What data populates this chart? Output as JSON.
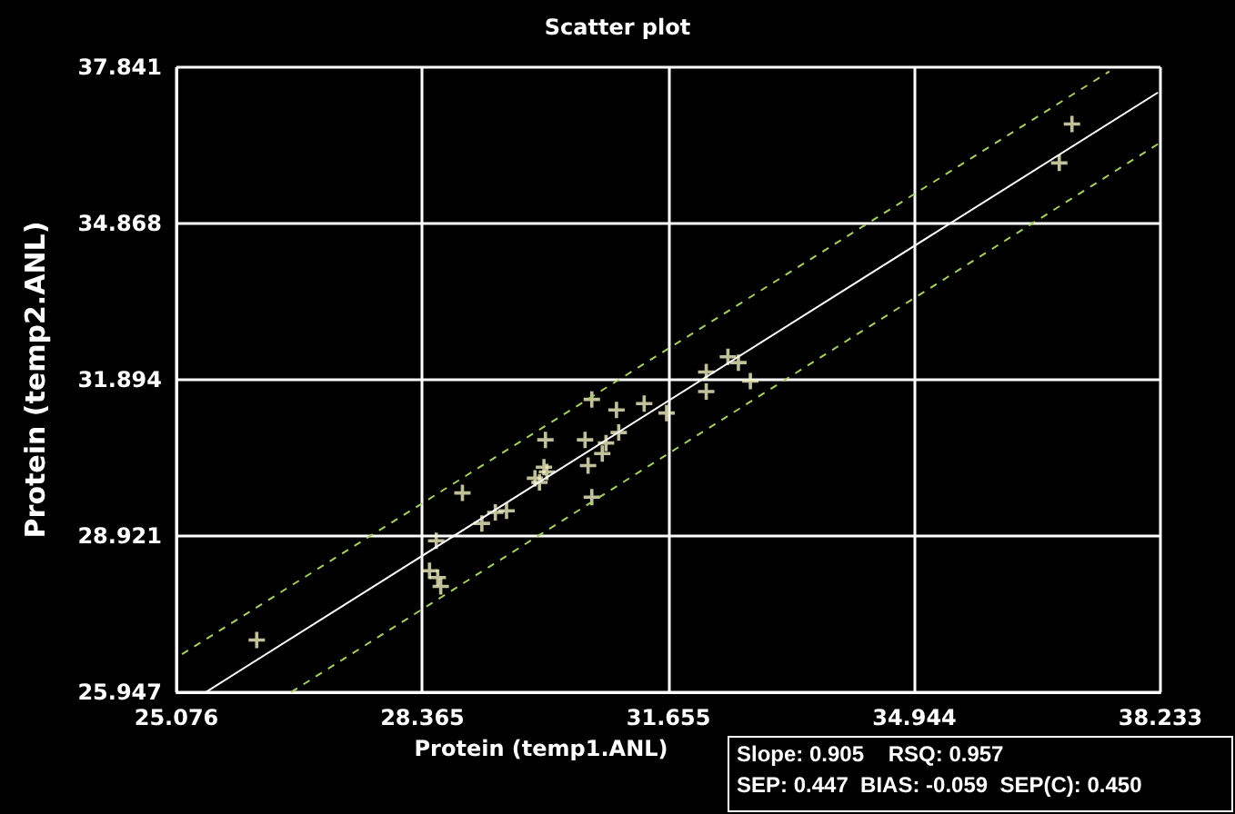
{
  "chart_data": {
    "type": "scatter",
    "title": "Scatter plot",
    "xlabel": "Protein (temp1.ANL)",
    "ylabel": "Protein (temp2.ANL)",
    "xlim": [
      25.076,
      38.233
    ],
    "xticks": [
      25.076,
      28.365,
      31.655,
      34.944,
      38.233
    ],
    "ylim": [
      25.947,
      37.841
    ],
    "yticks": [
      25.947,
      28.921,
      31.894,
      34.868,
      37.841
    ],
    "grid": true,
    "marker": "cross",
    "series": [
      {
        "color": "#f0f0c0",
        "x": [
          26.15,
          28.46,
          28.57,
          28.61,
          28.55,
          28.9,
          29.16,
          29.34,
          29.49,
          29.87,
          29.93,
          29.99,
          30.03,
          30.01,
          30.63,
          30.96,
          30.54,
          30.82,
          30.99,
          30.77,
          30.58,
          30.63,
          31.33,
          31.63,
          32.16,
          32.16,
          32.45,
          32.59,
          32.75,
          36.88,
          37.05
        ],
        "values": [
          26.94,
          28.26,
          28.13,
          27.96,
          28.83,
          29.74,
          29.16,
          29.37,
          29.4,
          30.02,
          29.94,
          30.23,
          30.14,
          30.75,
          31.52,
          31.32,
          30.75,
          30.69,
          30.89,
          30.49,
          30.26,
          29.66,
          31.44,
          31.26,
          32.04,
          31.67,
          32.33,
          32.22,
          31.87,
          36.02,
          36.76
        ]
      },
      {
        "type": "line",
        "marker": "none",
        "color": "#ffffff",
        "line_style": "solid",
        "x": [
          25.47,
          38.2
        ],
        "values": [
          25.95,
          37.36
        ]
      },
      {
        "type": "line",
        "marker": "none",
        "color": "#a8d060",
        "line_style": "dashed",
        "x": [
          25.15,
          37.55
        ],
        "values": [
          26.67,
          37.76
        ]
      },
      {
        "type": "line",
        "marker": "none",
        "color": "#a8d060",
        "line_style": "dashed",
        "x": [
          26.61,
          38.2
        ],
        "values": [
          25.95,
          36.38
        ]
      }
    ],
    "annotations": [
      "Slope: 0.905    RSQ: 0.957",
      "SEP: 0.447  BIAS: -0.059  SEP(C): 0.450"
    ]
  }
}
